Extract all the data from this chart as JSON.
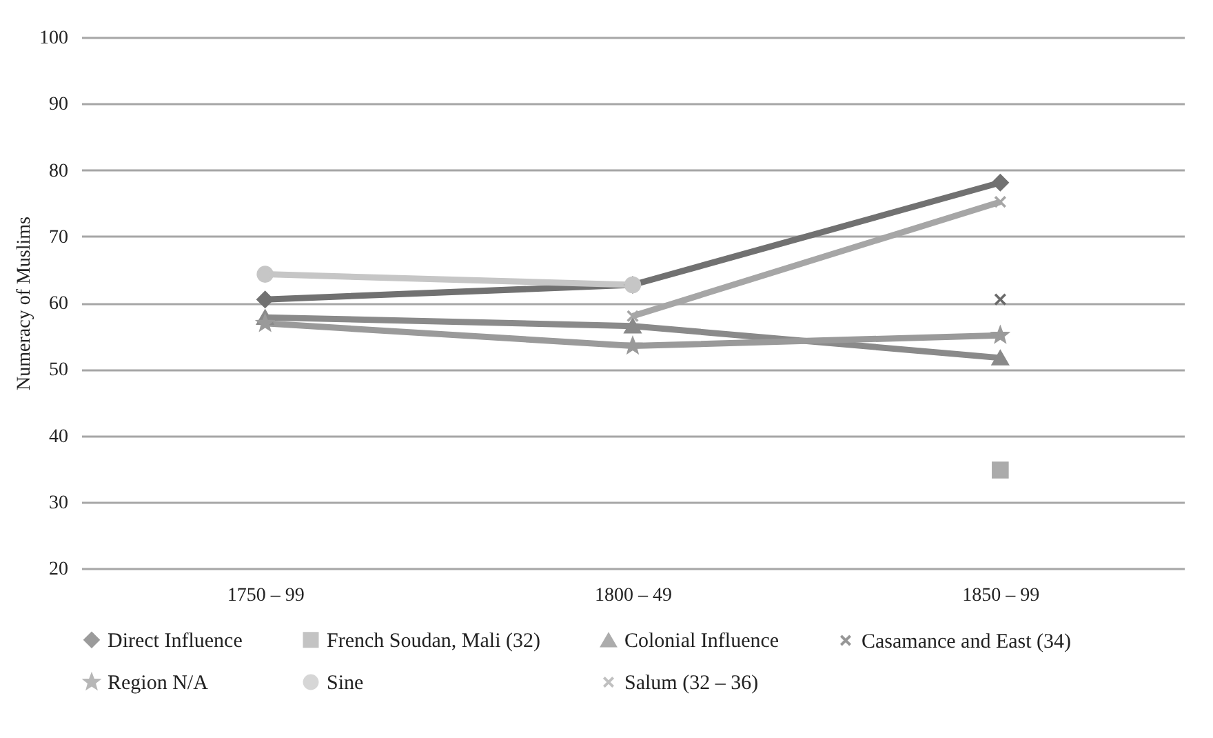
{
  "chart_data": {
    "type": "line",
    "ylabel": "Numeracy of Muslims",
    "categories": [
      "1750 – 99",
      "1800 – 49",
      "1850 – 99"
    ],
    "series": [
      {
        "name": "Direct Influence",
        "color": "#717171",
        "marker": "diamond",
        "values": [
          60.5,
          62.7,
          78.1
        ]
      },
      {
        "name": "French Soudan, Mali (32)",
        "color": "#ababab",
        "marker": "square",
        "values": [
          null,
          null,
          34.8
        ]
      },
      {
        "name": "Colonial Influence",
        "color": "#8a8a8a",
        "marker": "triangle",
        "values": [
          57.8,
          56.5,
          51.7
        ]
      },
      {
        "name": "Casamance and East (34)",
        "color": "#6a6a6a",
        "marker": "cross",
        "values": [
          null,
          null,
          60.5
        ]
      },
      {
        "name": "Region N/A",
        "color": "#9a9a9a",
        "marker": "star",
        "values": [
          56.9,
          53.5,
          55.1
        ]
      },
      {
        "name": "Sine",
        "color": "#c6c6c6",
        "marker": "circle",
        "values": [
          64.3,
          62.7,
          null
        ]
      },
      {
        "name": "Salum (32 – 36)",
        "color": "#a6a6a6",
        "marker": "cross",
        "values": [
          null,
          58,
          75.2
        ]
      }
    ],
    "ylim": [
      20,
      100
    ],
    "yticks": [
      20,
      30,
      40,
      50,
      60,
      70,
      80,
      90,
      100
    ],
    "grid": "y",
    "legend": "bottom",
    "line_style": "solid"
  }
}
